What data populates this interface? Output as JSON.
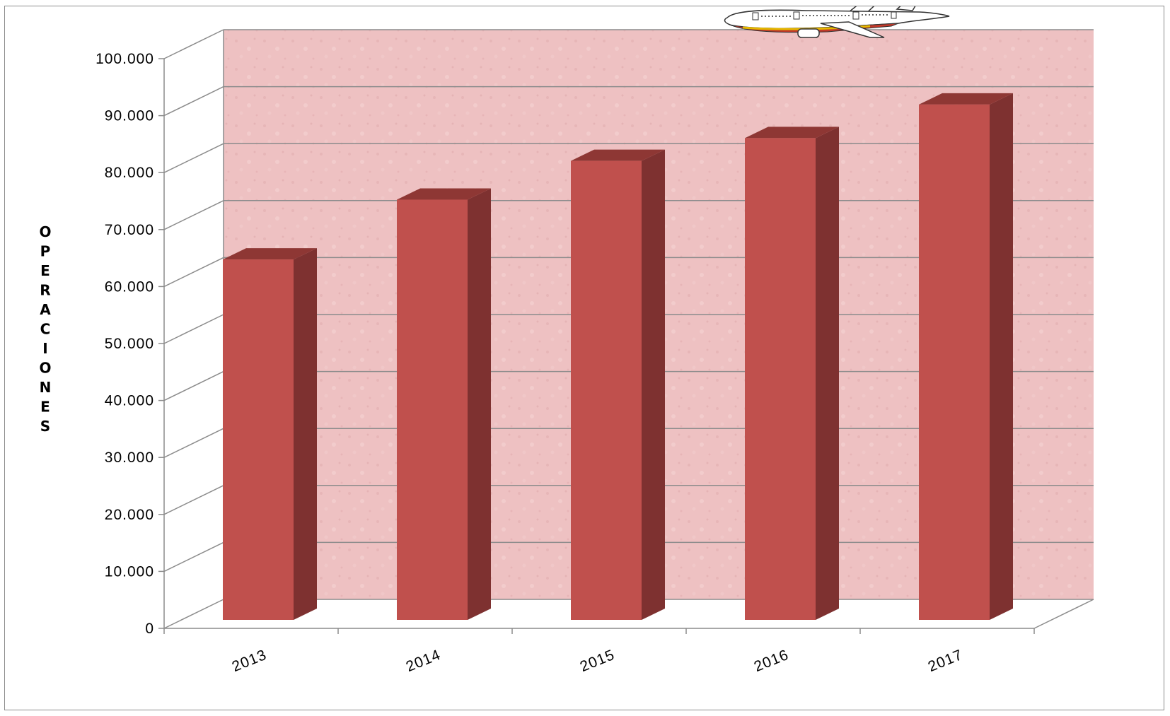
{
  "chart_data": {
    "type": "bar",
    "title": "",
    "xlabel": "",
    "ylabel": "OPERACIONES",
    "categories": [
      "2013",
      "2014",
      "2015",
      "2016",
      "2017"
    ],
    "values": [
      65500,
      76000,
      82800,
      86800,
      92700
    ],
    "ylim": [
      0,
      100000
    ],
    "yticks": [
      "0",
      "10.000",
      "20.000",
      "30.000",
      "40.000",
      "50.000",
      "60.000",
      "70.000",
      "80.000",
      "90.000",
      "100.000"
    ],
    "grid": true,
    "legend": "none",
    "bar_color": "#c0504d",
    "bar_side_color": "#7e3130",
    "bar_top_color": "#8e3734",
    "wall_color": "#eec1c2",
    "decoration": "airplane-clipart"
  }
}
